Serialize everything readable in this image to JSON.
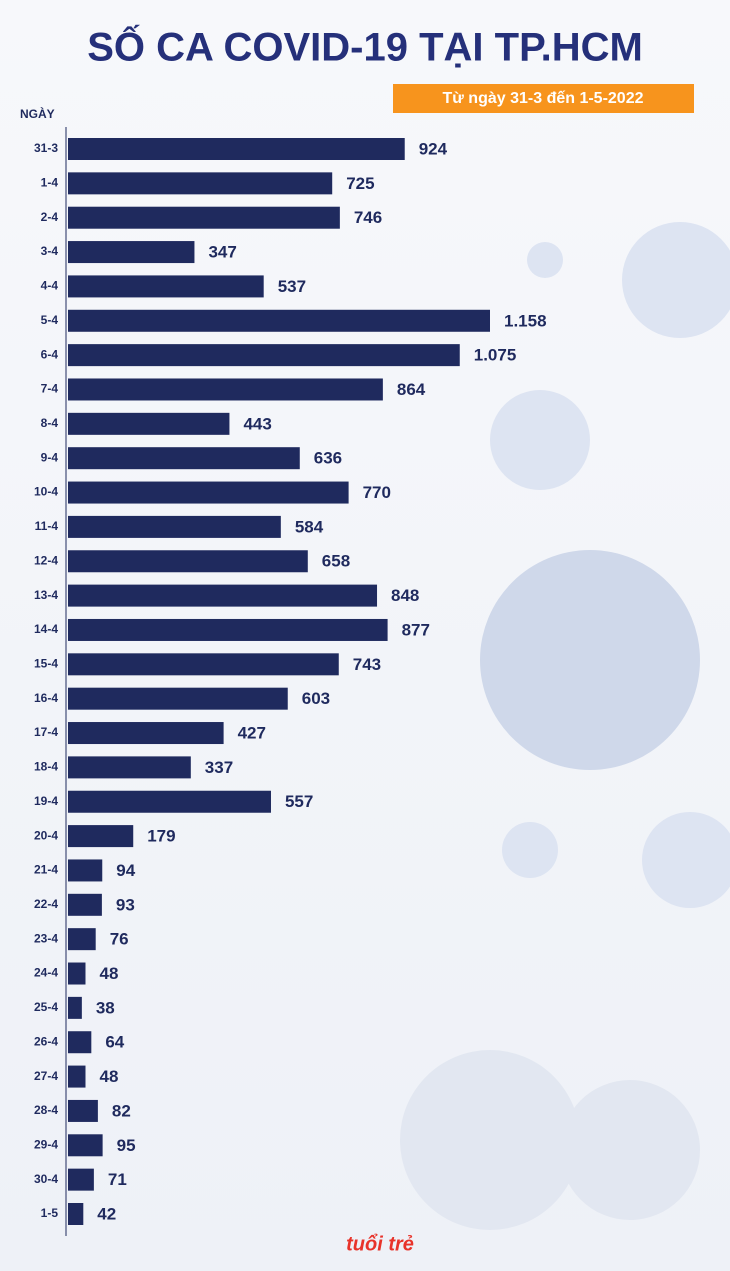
{
  "chart_data": {
    "type": "bar",
    "title": "SỐ CA COVID-19 TẠI TP.HCM",
    "subtitle": "Từ ngày 31-3 đến 1-5-2022",
    "y_label": "NGÀY",
    "logo": "tuổi trẻ",
    "color": "#1f2a5e",
    "categories": [
      "31-3",
      "1-4",
      "2-4",
      "3-4",
      "4-4",
      "5-4",
      "6-4",
      "7-4",
      "8-4",
      "9-4",
      "10-4",
      "11-4",
      "12-4",
      "13-4",
      "14-4",
      "15-4",
      "16-4",
      "17-4",
      "18-4",
      "19-4",
      "20-4",
      "21-4",
      "22-4",
      "23-4",
      "24-4",
      "25-4",
      "26-4",
      "27-4",
      "28-4",
      "29-4",
      "30-4",
      "1-5"
    ],
    "values": [
      924,
      725,
      746,
      347,
      537,
      1158,
      1075,
      864,
      443,
      636,
      770,
      584,
      658,
      848,
      877,
      743,
      603,
      427,
      337,
      557,
      179,
      94,
      93,
      76,
      48,
      38,
      64,
      48,
      82,
      95,
      71,
      42
    ],
    "value_labels": [
      "924",
      "725",
      "746",
      "347",
      "537",
      "1.158",
      "1.075",
      "864",
      "443",
      "636",
      "770",
      "584",
      "658",
      "848",
      "877",
      "743",
      "603",
      "427",
      "337",
      "557",
      "179",
      "94",
      "93",
      "76",
      "48",
      "38",
      "64",
      "48",
      "82",
      "95",
      "71",
      "42"
    ]
  }
}
